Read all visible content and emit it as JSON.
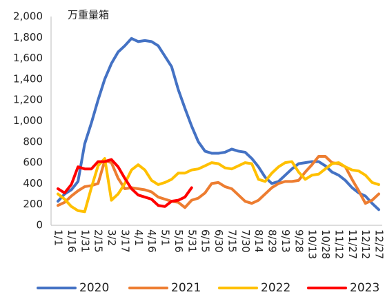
{
  "chart_data": {
    "type": "line",
    "annotation": "万重量箱",
    "categories": [
      "1/1",
      null,
      "1/16",
      null,
      "1/31",
      null,
      "2/15",
      null,
      "3/2",
      null,
      "3/17",
      null,
      "4/1",
      null,
      "4/16",
      null,
      "5/1",
      null,
      "5/16",
      null,
      "5/31",
      null,
      "6/15",
      null,
      "6/30",
      null,
      "7/15",
      null,
      "7/30",
      null,
      "8/14",
      null,
      "8/29",
      null,
      "9/13",
      null,
      "9/28",
      null,
      "10/13",
      null,
      "10/28",
      null,
      "11/12",
      null,
      "11/27",
      null,
      "12/12",
      null,
      "12/27"
    ],
    "series": [
      {
        "name": "2020",
        "color": "#4472c4",
        "values": [
          230,
          300,
          340,
          420,
          780,
          980,
          1200,
          1400,
          1550,
          1660,
          1720,
          1790,
          1760,
          1770,
          1760,
          1720,
          1620,
          1520,
          1300,
          1120,
          950,
          800,
          710,
          690,
          690,
          700,
          730,
          710,
          700,
          640,
          560,
          460,
          400,
          420,
          480,
          540,
          590,
          600,
          610,
          610,
          570,
          510,
          480,
          430,
          360,
          310,
          280,
          210,
          150
        ]
      },
      {
        "name": "2021",
        "color": "#ed7d31",
        "values": [
          190,
          220,
          280,
          330,
          370,
          380,
          400,
          620,
          600,
          450,
          350,
          360,
          350,
          340,
          320,
          270,
          250,
          230,
          220,
          170,
          240,
          260,
          310,
          400,
          410,
          370,
          350,
          290,
          230,
          210,
          240,
          300,
          360,
          400,
          420,
          420,
          430,
          510,
          580,
          660,
          660,
          600,
          590,
          560,
          440,
          330,
          210,
          240,
          300
        ]
      },
      {
        "name": "2022",
        "color": "#ffc000",
        "values": [
          300,
          250,
          180,
          140,
          130,
          360,
          570,
          640,
          240,
          300,
          400,
          530,
          580,
          530,
          430,
          390,
          410,
          440,
          500,
          500,
          530,
          540,
          570,
          600,
          590,
          550,
          540,
          570,
          600,
          590,
          440,
          420,
          500,
          560,
          600,
          610,
          510,
          440,
          480,
          490,
          540,
          590,
          600,
          560,
          530,
          520,
          480,
          410,
          390
        ]
      },
      {
        "name": "2023",
        "color": "#ff0000",
        "values": [
          350,
          310,
          390,
          560,
          540,
          540,
          610,
          610,
          630,
          560,
          450,
          350,
          290,
          270,
          250,
          190,
          180,
          230,
          240,
          270,
          360,
          null,
          null,
          null,
          null,
          null,
          null,
          null,
          null,
          null,
          null,
          null,
          null,
          null,
          null,
          null,
          null,
          null,
          null,
          null,
          null,
          null,
          null,
          null,
          null,
          null,
          null,
          null,
          null
        ]
      }
    ],
    "ylim": [
      0,
      2000
    ],
    "yticks": [
      0,
      200,
      400,
      600,
      800,
      {
        "value": 1000,
        "label": "1,000"
      },
      {
        "value": 1200,
        "label": "1,200"
      },
      {
        "value": 1400,
        "label": "1,400"
      },
      {
        "value": 1600,
        "label": "1,600"
      },
      {
        "value": 1800,
        "label": "1,800"
      },
      {
        "value": 2000,
        "label": "2,000"
      }
    ],
    "grid": false,
    "legend": "bottom"
  }
}
